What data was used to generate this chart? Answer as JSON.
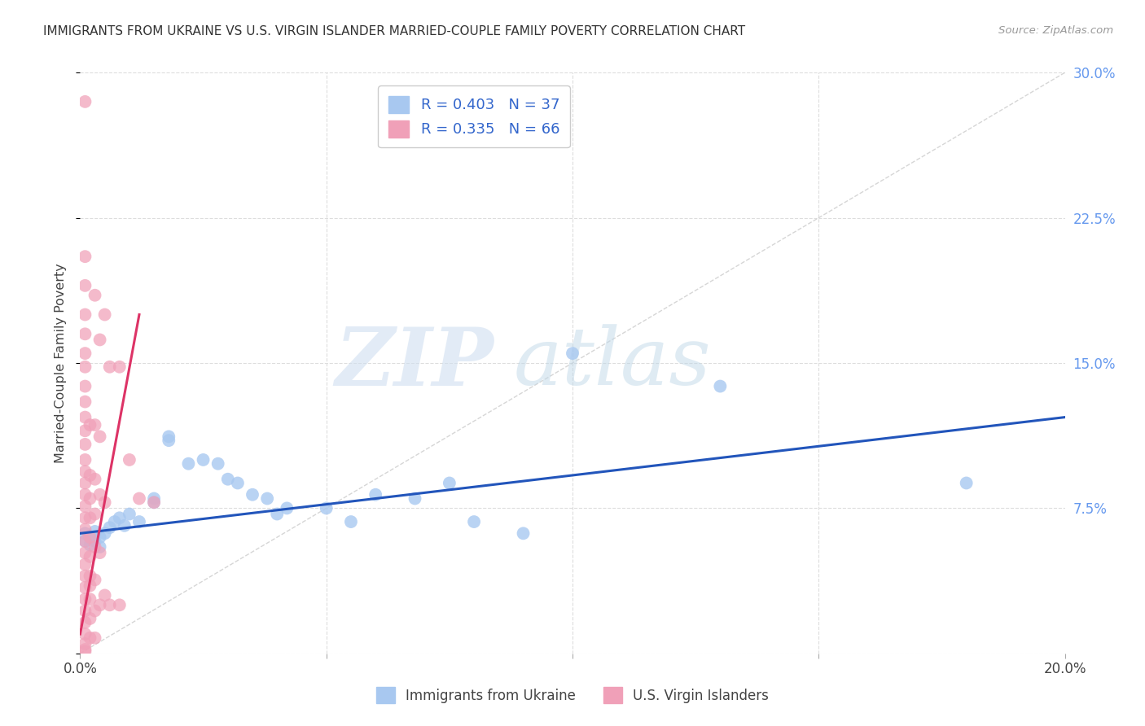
{
  "title": "IMMIGRANTS FROM UKRAINE VS U.S. VIRGIN ISLANDER MARRIED-COUPLE FAMILY POVERTY CORRELATION CHART",
  "source": "Source: ZipAtlas.com",
  "ylabel": "Married-Couple Family Poverty",
  "x_min": 0.0,
  "x_max": 0.2,
  "y_min": 0.0,
  "y_max": 0.3,
  "color_blue": "#A8C8F0",
  "color_pink": "#F0A0B8",
  "line_color_blue": "#2255BB",
  "line_color_pink": "#DD3366",
  "diag_color": "#CCCCCC",
  "background_color": "#FFFFFF",
  "watermark_zip": "ZIP",
  "watermark_atlas": "atlas",
  "blue_trendline": [
    [
      0.0,
      0.062
    ],
    [
      0.2,
      0.122
    ]
  ],
  "pink_trendline": [
    [
      0.0,
      0.01
    ],
    [
      0.012,
      0.175
    ]
  ],
  "blue_points": [
    [
      0.001,
      0.062
    ],
    [
      0.001,
      0.058
    ],
    [
      0.002,
      0.06
    ],
    [
      0.002,
      0.056
    ],
    [
      0.003,
      0.063
    ],
    [
      0.003,
      0.058
    ],
    [
      0.004,
      0.06
    ],
    [
      0.004,
      0.055
    ],
    [
      0.005,
      0.062
    ],
    [
      0.006,
      0.065
    ],
    [
      0.007,
      0.068
    ],
    [
      0.008,
      0.07
    ],
    [
      0.009,
      0.066
    ],
    [
      0.01,
      0.072
    ],
    [
      0.012,
      0.068
    ],
    [
      0.015,
      0.078
    ],
    [
      0.015,
      0.08
    ],
    [
      0.018,
      0.112
    ],
    [
      0.018,
      0.11
    ],
    [
      0.022,
      0.098
    ],
    [
      0.025,
      0.1
    ],
    [
      0.028,
      0.098
    ],
    [
      0.03,
      0.09
    ],
    [
      0.032,
      0.088
    ],
    [
      0.035,
      0.082
    ],
    [
      0.038,
      0.08
    ],
    [
      0.04,
      0.072
    ],
    [
      0.042,
      0.075
    ],
    [
      0.05,
      0.075
    ],
    [
      0.055,
      0.068
    ],
    [
      0.06,
      0.082
    ],
    [
      0.068,
      0.08
    ],
    [
      0.075,
      0.088
    ],
    [
      0.08,
      0.068
    ],
    [
      0.09,
      0.062
    ],
    [
      0.1,
      0.155
    ],
    [
      0.13,
      0.138
    ],
    [
      0.18,
      0.088
    ]
  ],
  "pink_points": [
    [
      0.001,
      0.285
    ],
    [
      0.001,
      0.205
    ],
    [
      0.001,
      0.19
    ],
    [
      0.001,
      0.175
    ],
    [
      0.001,
      0.165
    ],
    [
      0.001,
      0.155
    ],
    [
      0.001,
      0.148
    ],
    [
      0.001,
      0.138
    ],
    [
      0.001,
      0.13
    ],
    [
      0.001,
      0.122
    ],
    [
      0.001,
      0.115
    ],
    [
      0.001,
      0.108
    ],
    [
      0.001,
      0.1
    ],
    [
      0.001,
      0.094
    ],
    [
      0.001,
      0.088
    ],
    [
      0.001,
      0.082
    ],
    [
      0.001,
      0.076
    ],
    [
      0.001,
      0.07
    ],
    [
      0.001,
      0.064
    ],
    [
      0.001,
      0.058
    ],
    [
      0.001,
      0.052
    ],
    [
      0.001,
      0.046
    ],
    [
      0.001,
      0.04
    ],
    [
      0.001,
      0.034
    ],
    [
      0.001,
      0.028
    ],
    [
      0.001,
      0.022
    ],
    [
      0.001,
      0.016
    ],
    [
      0.001,
      0.01
    ],
    [
      0.001,
      0.005
    ],
    [
      0.001,
      0.002
    ],
    [
      0.001,
      0.001
    ],
    [
      0.002,
      0.118
    ],
    [
      0.002,
      0.092
    ],
    [
      0.002,
      0.08
    ],
    [
      0.002,
      0.07
    ],
    [
      0.002,
      0.06
    ],
    [
      0.002,
      0.05
    ],
    [
      0.002,
      0.04
    ],
    [
      0.002,
      0.028
    ],
    [
      0.002,
      0.018
    ],
    [
      0.002,
      0.008
    ],
    [
      0.003,
      0.185
    ],
    [
      0.003,
      0.118
    ],
    [
      0.003,
      0.09
    ],
    [
      0.003,
      0.072
    ],
    [
      0.003,
      0.055
    ],
    [
      0.003,
      0.038
    ],
    [
      0.003,
      0.022
    ],
    [
      0.004,
      0.162
    ],
    [
      0.004,
      0.112
    ],
    [
      0.004,
      0.082
    ],
    [
      0.004,
      0.052
    ],
    [
      0.005,
      0.175
    ],
    [
      0.005,
      0.078
    ],
    [
      0.006,
      0.148
    ],
    [
      0.008,
      0.148
    ],
    [
      0.01,
      0.1
    ],
    [
      0.012,
      0.08
    ],
    [
      0.015,
      0.078
    ],
    [
      0.005,
      0.03
    ],
    [
      0.003,
      0.008
    ],
    [
      0.002,
      0.035
    ],
    [
      0.004,
      0.025
    ],
    [
      0.006,
      0.025
    ],
    [
      0.008,
      0.025
    ]
  ]
}
